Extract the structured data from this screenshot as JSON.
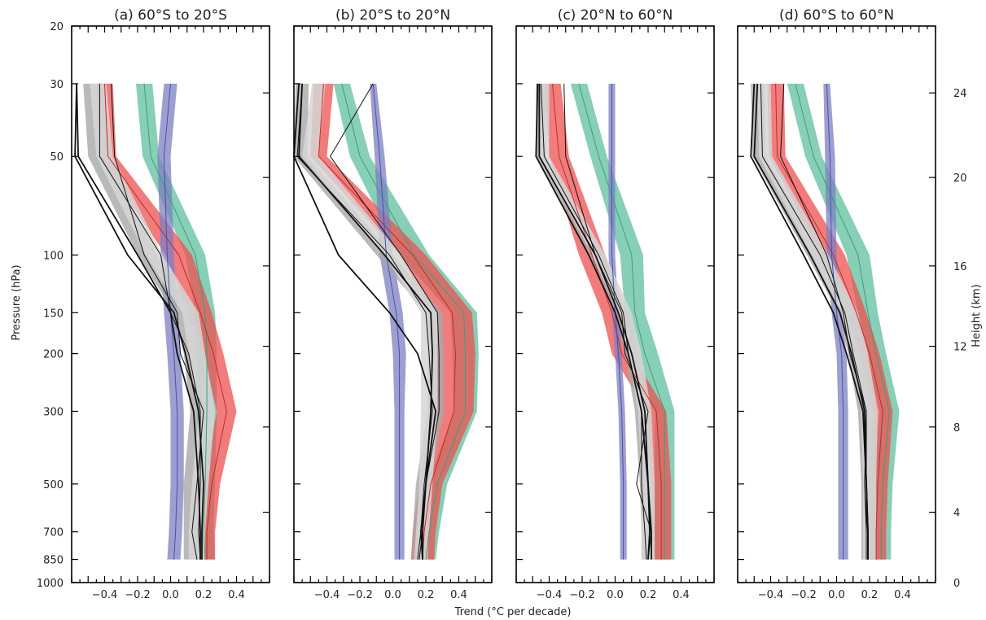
{
  "figure": {
    "xlabel": "Trend (°C per decade)",
    "ylabel_left": "Pressure (hPa)",
    "ylabel_right": "Height (km)"
  },
  "colors": {
    "green": "#5fbf9e",
    "green_line": "#3e9e7c",
    "red": "#ee5050",
    "red_line": "#c22a2a",
    "blue": "#7c7fc2",
    "blue_line": "#4a4fa5",
    "grey": "#a8a8a8",
    "lightgrey": "#d6d6d6",
    "black": "#111111"
  },
  "chart_data": [
    {
      "type": "line",
      "title": "(a) 60°S to 20°S",
      "xlim": [
        -0.6,
        0.6
      ],
      "y_scale": "log-pressure",
      "ylim": [
        1000,
        20
      ],
      "y_ticks": [
        20,
        30,
        50,
        100,
        150,
        200,
        300,
        500,
        700,
        850,
        1000
      ],
      "x_ticks": [
        -0.4,
        -0.2,
        0.0,
        0.2,
        0.4
      ],
      "pressure_levels": [
        30,
        50,
        100,
        150,
        200,
        300,
        500,
        700,
        850
      ],
      "series": [
        {
          "color": "green",
          "center": [
            -0.16,
            -0.12,
            0.15,
            0.21,
            0.22,
            0.22,
            0.21,
            0.2,
            0.21
          ],
          "half_width": [
            0.05,
            0.05,
            0.06,
            0.06,
            0.06,
            0.06,
            0.06,
            0.06,
            0.06
          ]
        },
        {
          "color": "red",
          "center": [
            -0.4,
            -0.38,
            0.05,
            0.18,
            0.26,
            0.34,
            0.25,
            0.22,
            0.22
          ],
          "half_width": [
            0.05,
            0.05,
            0.08,
            0.07,
            0.06,
            0.06,
            0.05,
            0.05,
            0.05
          ]
        },
        {
          "color": "blue",
          "center": [
            0.0,
            -0.04,
            -0.02,
            0.0,
            0.02,
            0.04,
            0.04,
            0.03,
            0.02
          ],
          "half_width": [
            0.04,
            0.04,
            0.04,
            0.04,
            0.04,
            0.04,
            0.04,
            0.04,
            0.04
          ]
        },
        {
          "color": "grey",
          "center": [
            -0.47,
            -0.44,
            -0.14,
            0.08,
            0.14,
            0.18,
            0.14,
            0.14,
            0.14
          ],
          "half_width": [
            0.06,
            0.06,
            0.06,
            0.06,
            0.06,
            0.06,
            0.06,
            0.06,
            0.06
          ]
        },
        {
          "color": "lightgrey",
          "center": [
            -0.44,
            -0.4,
            -0.1,
            0.12,
            0.16,
            0.22,
            0.18,
            0.16,
            0.16
          ],
          "half_width": [
            0.05,
            0.05,
            0.05,
            0.05,
            0.05,
            0.05,
            0.05,
            0.05,
            0.05
          ]
        },
        {
          "color": "black",
          "center": [
            -0.57,
            -0.58,
            -0.26,
            0.02,
            0.09,
            0.17,
            0.2,
            0.19,
            0.19
          ]
        },
        {
          "color": "black",
          "center": [
            -0.57,
            -0.56,
            -0.2,
            0.0,
            0.04,
            0.14,
            0.17,
            0.18,
            0.18
          ]
        },
        {
          "color": "black",
          "center": [
            -0.43,
            -0.43,
            -0.06,
            0.0,
            0.11,
            0.18,
            0.18,
            0.17,
            0.18
          ],
          "thin": true
        },
        {
          "color": "black",
          "center": [
            -0.36,
            -0.34,
            -0.16,
            0.04,
            0.06,
            0.2,
            0.16,
            0.13,
            0.16
          ],
          "thin": true
        }
      ]
    },
    {
      "type": "line",
      "title": "(b) 20°S to 20°N",
      "xlim": [
        -0.6,
        0.6
      ],
      "y_scale": "log-pressure",
      "ylim": [
        1000,
        20
      ],
      "y_ticks": [
        20,
        30,
        50,
        100,
        150,
        200,
        300,
        500,
        700,
        850,
        1000
      ],
      "x_ticks": [
        -0.4,
        -0.2,
        0.0,
        0.2,
        0.4
      ],
      "pressure_levels": [
        30,
        50,
        100,
        150,
        200,
        300,
        500,
        700,
        850
      ],
      "series": [
        {
          "color": "green",
          "center": [
            -0.31,
            -0.2,
            0.13,
            0.43,
            0.44,
            0.44,
            0.27,
            0.22,
            0.2
          ],
          "half_width": [
            0.05,
            0.06,
            0.09,
            0.08,
            0.08,
            0.07,
            0.06,
            0.06,
            0.06
          ]
        },
        {
          "color": "red",
          "center": [
            -0.42,
            -0.45,
            0.12,
            0.36,
            0.38,
            0.37,
            0.23,
            0.19,
            0.18
          ],
          "half_width": [
            0.06,
            0.05,
            0.08,
            0.12,
            0.12,
            0.12,
            0.07,
            0.07,
            0.07
          ]
        },
        {
          "color": "blue",
          "center": [
            -0.12,
            -0.08,
            -0.04,
            0.02,
            0.04,
            0.04,
            0.04,
            0.04,
            0.04
          ],
          "half_width": [
            0.02,
            0.03,
            0.04,
            0.04,
            0.04,
            0.03,
            0.03,
            0.03,
            0.03
          ]
        },
        {
          "color": "grey",
          "center": [
            -0.55,
            -0.56,
            -0.05,
            0.25,
            0.26,
            0.26,
            0.18,
            0.16,
            0.16
          ],
          "half_width": [
            0.04,
            0.04,
            0.05,
            0.05,
            0.05,
            0.05,
            0.04,
            0.04,
            0.04
          ]
        },
        {
          "color": "lightgrey",
          "center": [
            -0.45,
            -0.5,
            0.0,
            0.22,
            0.22,
            0.22,
            0.2,
            0.18,
            0.17
          ],
          "half_width": [
            0.04,
            0.05,
            0.05,
            0.05,
            0.05,
            0.05,
            0.04,
            0.04,
            0.04
          ]
        },
        {
          "color": "black",
          "center": [
            -0.57,
            -0.6,
            -0.33,
            -0.02,
            0.15,
            0.26,
            0.2,
            0.17,
            0.18
          ]
        },
        {
          "color": "black",
          "center": [
            -0.55,
            -0.57,
            -0.05,
            0.23,
            0.24,
            0.23,
            0.2,
            0.18,
            0.18
          ]
        },
        {
          "color": "black",
          "center": [
            -0.12,
            -0.38,
            0.05,
            0.27,
            0.28,
            0.28,
            0.2,
            0.18,
            0.16
          ],
          "thin": true
        },
        {
          "color": "black",
          "center": [
            -0.55,
            -0.58,
            -0.02,
            0.2,
            0.22,
            0.24,
            0.19,
            0.17,
            0.15
          ],
          "thin": true
        }
      ]
    },
    {
      "type": "line",
      "title": "(c) 20°N to 60°N",
      "xlim": [
        -0.6,
        0.6
      ],
      "y_scale": "log-pressure",
      "ylim": [
        1000,
        20
      ],
      "y_ticks": [
        20,
        30,
        50,
        100,
        150,
        200,
        300,
        500,
        700,
        850,
        1000
      ],
      "x_ticks": [
        -0.4,
        -0.2,
        0.0,
        0.2,
        0.4
      ],
      "pressure_levels": [
        30,
        50,
        100,
        150,
        200,
        300,
        500,
        700,
        850
      ],
      "series": [
        {
          "color": "green",
          "center": [
            -0.22,
            -0.1,
            0.1,
            0.12,
            0.18,
            0.3,
            0.3,
            0.3,
            0.3
          ],
          "half_width": [
            0.05,
            0.05,
            0.07,
            0.06,
            0.08,
            0.06,
            0.06,
            0.06,
            0.06
          ]
        },
        {
          "color": "red",
          "center": [
            -0.38,
            -0.34,
            -0.14,
            -0.02,
            0.04,
            0.25,
            0.28,
            0.28,
            0.28
          ],
          "half_width": [
            0.05,
            0.06,
            0.08,
            0.06,
            0.06,
            0.06,
            0.06,
            0.06,
            0.06
          ]
        },
        {
          "color": "blue",
          "center": [
            -0.02,
            -0.02,
            -0.02,
            0.0,
            0.02,
            0.04,
            0.05,
            0.05,
            0.05
          ],
          "half_width": [
            0.02,
            0.02,
            0.02,
            0.02,
            0.02,
            0.02,
            0.02,
            0.02,
            0.02
          ]
        },
        {
          "color": "grey",
          "center": [
            -0.45,
            -0.45,
            -0.12,
            0.04,
            0.1,
            0.16,
            0.19,
            0.2,
            0.2
          ],
          "half_width": [
            0.03,
            0.03,
            0.04,
            0.04,
            0.04,
            0.04,
            0.04,
            0.04,
            0.04
          ]
        },
        {
          "color": "lightgrey",
          "center": [
            -0.43,
            -0.43,
            -0.1,
            0.06,
            0.12,
            0.18,
            0.2,
            0.2,
            0.2
          ],
          "half_width": [
            0.03,
            0.03,
            0.04,
            0.04,
            0.04,
            0.04,
            0.04,
            0.04,
            0.04
          ]
        },
        {
          "color": "black",
          "center": [
            -0.47,
            -0.48,
            -0.16,
            0.0,
            0.08,
            0.16,
            0.2,
            0.22,
            0.22
          ]
        },
        {
          "color": "black",
          "center": [
            -0.46,
            -0.46,
            -0.12,
            0.02,
            0.1,
            0.18,
            0.2,
            0.21,
            0.2
          ]
        },
        {
          "color": "black",
          "center": [
            -0.31,
            -0.3,
            -0.12,
            0.04,
            0.06,
            0.2,
            0.13,
            0.22,
            0.2
          ],
          "thin": true
        },
        {
          "color": "black",
          "center": [
            -0.45,
            -0.43,
            -0.1,
            0.05,
            0.08,
            0.16,
            0.16,
            0.18,
            0.19
          ],
          "thin": true
        }
      ]
    },
    {
      "type": "line",
      "title": "(d) 60°S to 60°N",
      "xlim": [
        -0.6,
        0.6
      ],
      "y_scale": "log-pressure",
      "ylim": [
        1000,
        20
      ],
      "y_ticks": [
        20,
        30,
        50,
        100,
        150,
        200,
        300,
        500,
        700,
        850,
        1000
      ],
      "x_ticks": [
        -0.4,
        -0.2,
        0.0,
        0.2,
        0.4
      ],
      "pressure_levels": [
        30,
        50,
        100,
        150,
        200,
        300,
        500,
        700,
        850
      ],
      "series": [
        {
          "color": "green",
          "center": [
            -0.25,
            -0.14,
            0.13,
            0.19,
            0.24,
            0.32,
            0.28,
            0.27,
            0.27
          ],
          "half_width": [
            0.05,
            0.05,
            0.07,
            0.06,
            0.06,
            0.06,
            0.06,
            0.06,
            0.06
          ]
        },
        {
          "color": "red",
          "center": [
            -0.37,
            -0.36,
            -0.02,
            0.12,
            0.2,
            0.28,
            0.25,
            0.24,
            0.24
          ],
          "half_width": [
            0.05,
            0.05,
            0.07,
            0.06,
            0.06,
            0.06,
            0.06,
            0.06,
            0.06
          ]
        },
        {
          "color": "blue",
          "center": [
            -0.06,
            -0.04,
            -0.03,
            0.0,
            0.03,
            0.04,
            0.04,
            0.04,
            0.04
          ],
          "half_width": [
            0.02,
            0.03,
            0.03,
            0.03,
            0.03,
            0.03,
            0.03,
            0.03,
            0.03
          ]
        },
        {
          "color": "grey",
          "center": [
            -0.48,
            -0.47,
            -0.13,
            0.06,
            0.12,
            0.18,
            0.19,
            0.19,
            0.19
          ],
          "half_width": [
            0.04,
            0.04,
            0.05,
            0.05,
            0.05,
            0.05,
            0.04,
            0.04,
            0.04
          ]
        },
        {
          "color": "lightgrey",
          "center": [
            -0.44,
            -0.43,
            -0.1,
            0.08,
            0.14,
            0.2,
            0.2,
            0.2,
            0.2
          ],
          "half_width": [
            0.04,
            0.04,
            0.05,
            0.05,
            0.05,
            0.05,
            0.04,
            0.04,
            0.04
          ]
        },
        {
          "color": "black",
          "center": [
            -0.5,
            -0.52,
            -0.2,
            -0.02,
            0.06,
            0.16,
            0.18,
            0.19,
            0.19
          ]
        },
        {
          "color": "black",
          "center": [
            -0.48,
            -0.5,
            -0.16,
            0.02,
            0.09,
            0.17,
            0.18,
            0.19,
            0.19
          ]
        },
        {
          "color": "black",
          "center": [
            -0.32,
            -0.34,
            -0.06,
            0.04,
            0.08,
            0.18,
            0.17,
            0.18,
            0.18
          ],
          "thin": true
        },
        {
          "color": "black",
          "center": [
            -0.46,
            -0.45,
            -0.1,
            0.05,
            0.1,
            0.18,
            0.18,
            0.18,
            0.18
          ],
          "thin": true
        }
      ]
    }
  ],
  "height_axis": {
    "ticks_km": [
      0,
      4,
      8,
      12,
      16,
      20,
      24
    ],
    "pressure_at_km": [
      1000,
      610,
      335,
      190,
      108,
      58,
      32
    ]
  }
}
